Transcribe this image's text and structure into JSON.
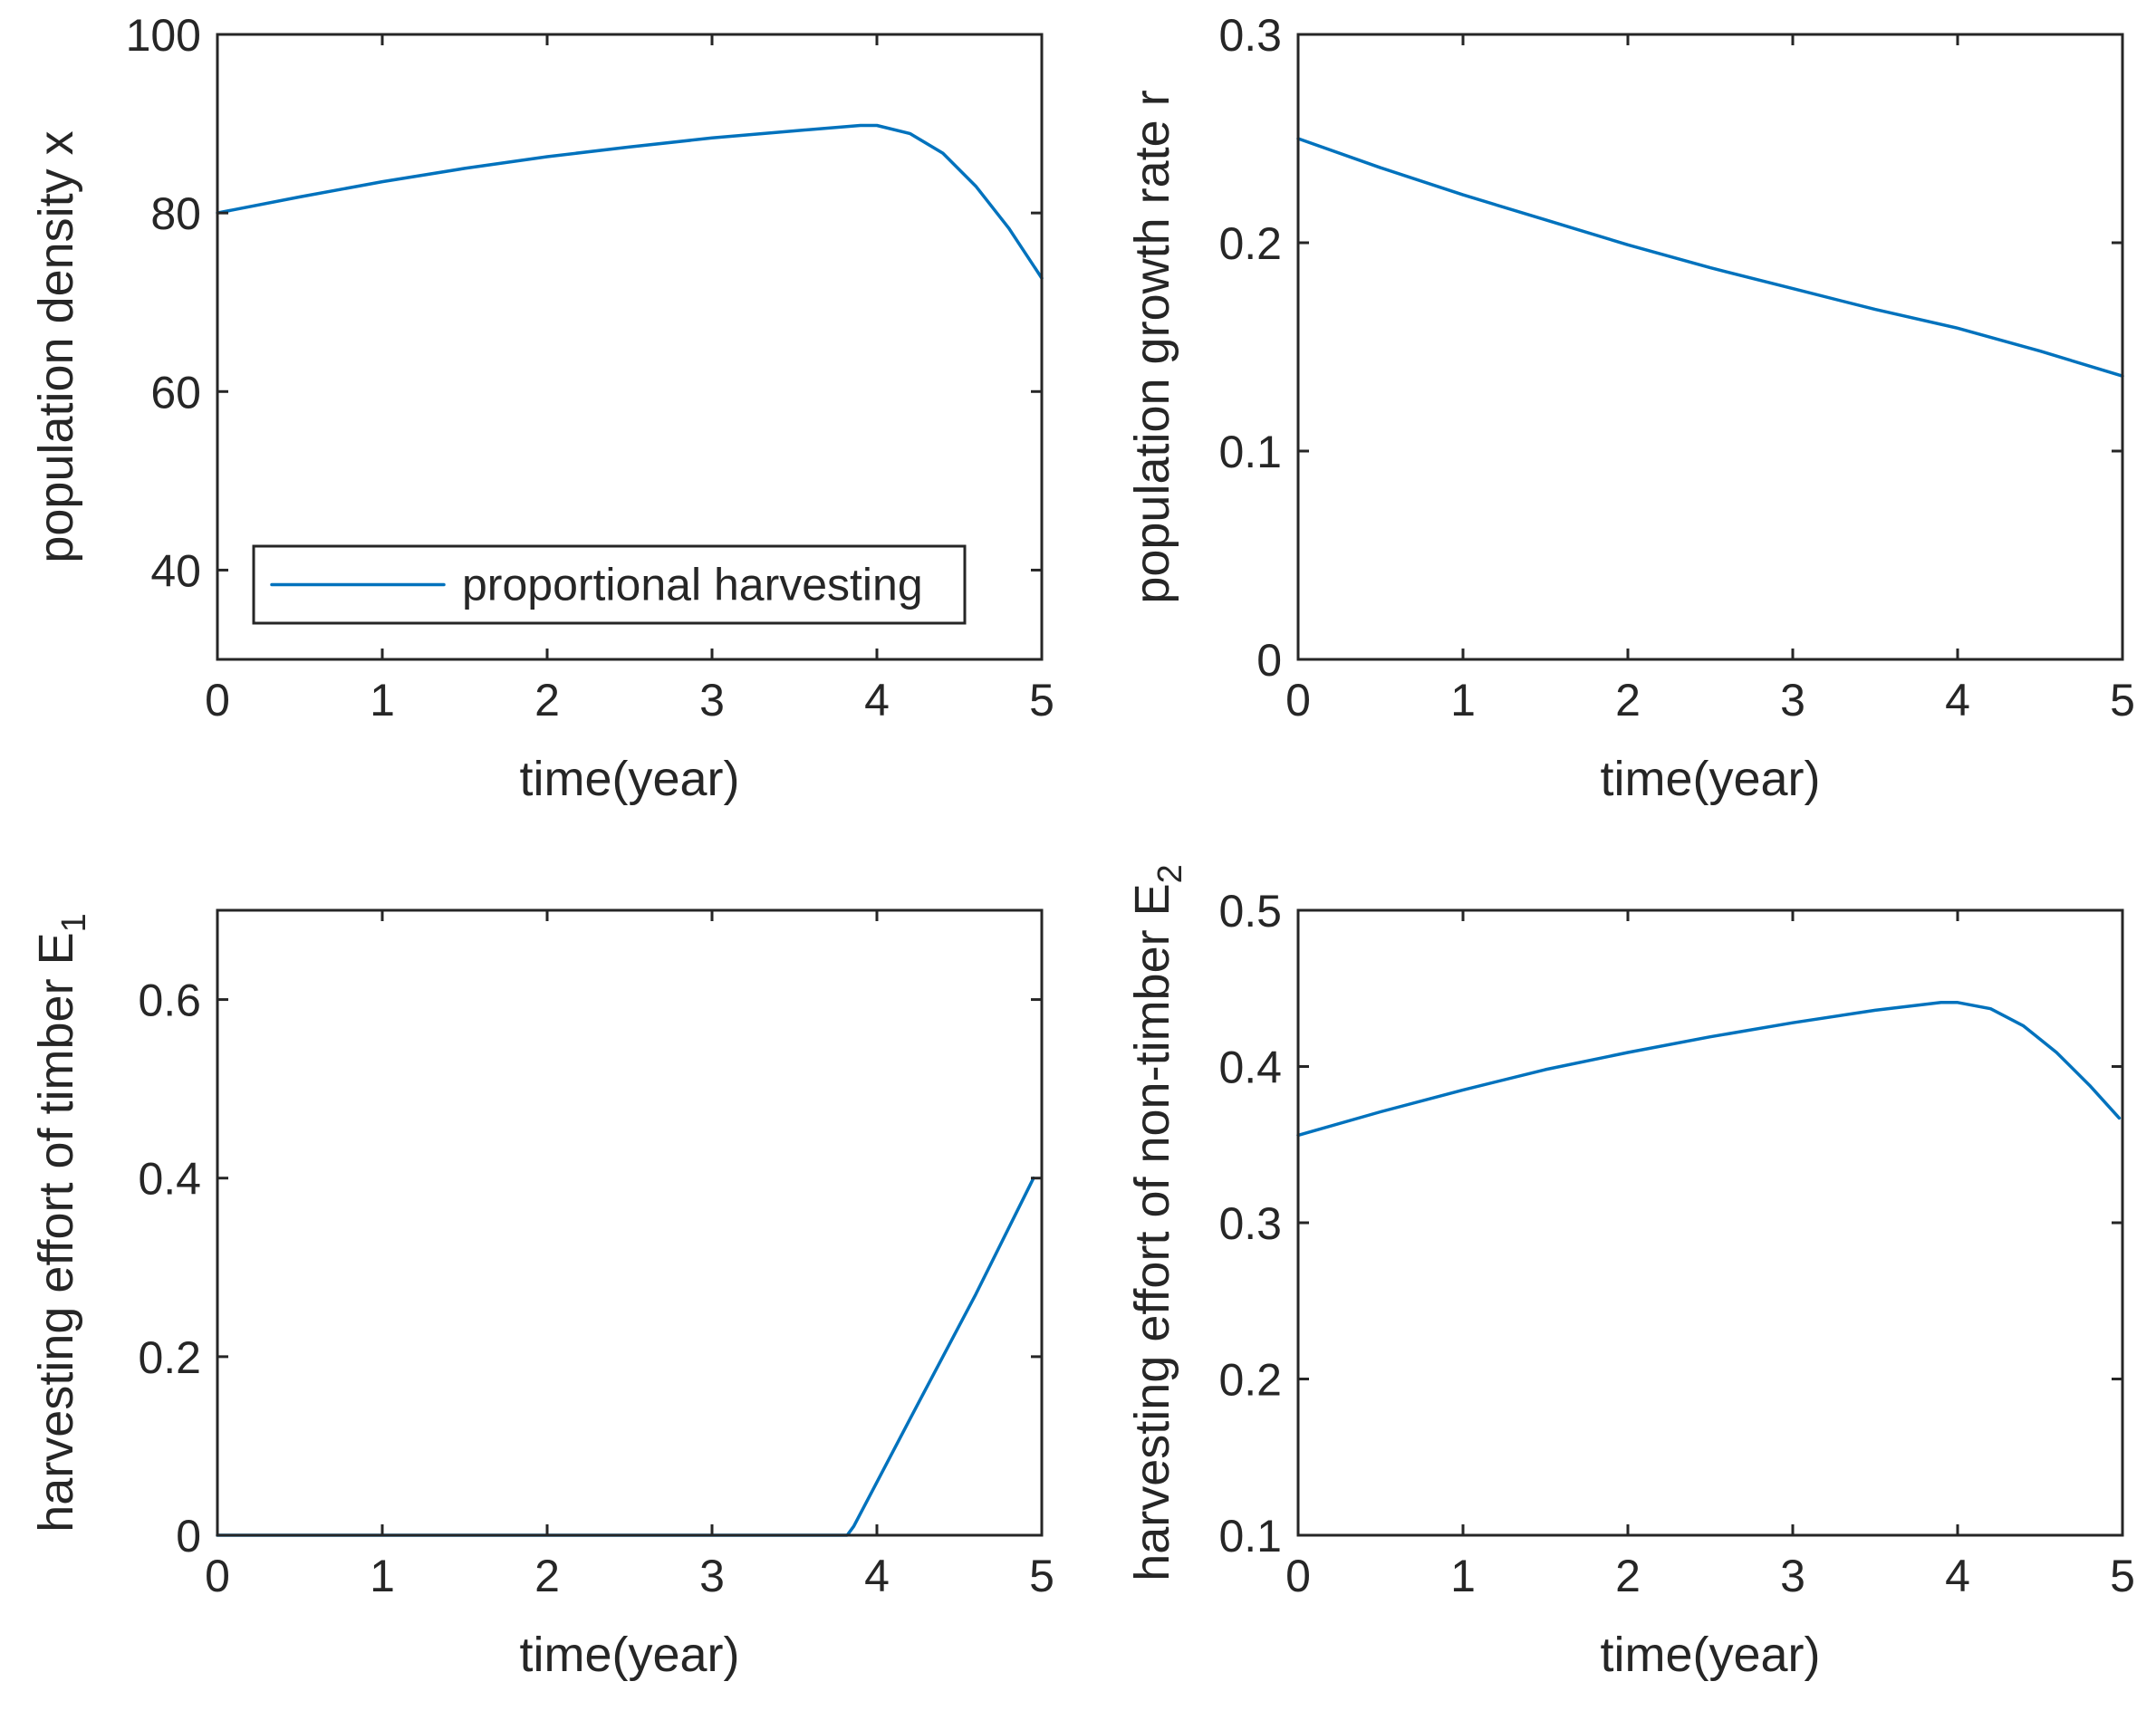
{
  "colors": {
    "series": "#0072BD",
    "axis": "#262626"
  },
  "chart_data": [
    {
      "type": "line",
      "xlabel": "time(year)",
      "ylabel": {
        "main": "population density x",
        "sub": ""
      },
      "xlim": [
        0,
        5
      ],
      "ylim": [
        30,
        100
      ],
      "xticks": [
        0,
        1,
        2,
        3,
        4,
        5
      ],
      "yticks": [
        40,
        60,
        80,
        100
      ],
      "legend": {
        "placement": "bottom-left",
        "entries": [
          "proportional harvesting"
        ]
      },
      "series": [
        {
          "name": "proportional harvesting",
          "x": [
            0,
            0.5,
            1,
            1.5,
            2,
            2.5,
            3,
            3.5,
            3.9,
            4.0,
            4.2,
            4.4,
            4.6,
            4.8,
            5.0
          ],
          "y": [
            80.0,
            81.8,
            83.5,
            85.0,
            86.3,
            87.4,
            88.4,
            89.2,
            89.8,
            89.8,
            88.9,
            86.7,
            83.0,
            78.3,
            72.7
          ]
        }
      ]
    },
    {
      "type": "line",
      "xlabel": "time(year)",
      "ylabel": {
        "main": "population growth rate r",
        "sub": ""
      },
      "xlim": [
        0,
        5
      ],
      "ylim": [
        0,
        0.3
      ],
      "xticks": [
        0,
        1,
        2,
        3,
        4,
        5
      ],
      "yticks": [
        0,
        0.1,
        0.2,
        0.3
      ],
      "series": [
        {
          "name": "",
          "x": [
            0,
            0.5,
            1,
            1.5,
            2,
            2.5,
            3,
            3.5,
            4,
            4.5,
            5
          ],
          "y": [
            0.25,
            0.236,
            0.223,
            0.211,
            0.199,
            0.188,
            0.178,
            0.168,
            0.159,
            0.148,
            0.136
          ]
        }
      ]
    },
    {
      "type": "line",
      "xlabel": "time(year)",
      "ylabel": {
        "main": "harvesting effort of timber E",
        "sub": "1"
      },
      "xlim": [
        0,
        5
      ],
      "ylim": [
        0,
        0.7
      ],
      "xticks": [
        0,
        1,
        2,
        3,
        4,
        5
      ],
      "yticks": [
        0,
        0.2,
        0.4,
        0.6
      ],
      "series": [
        {
          "name": "",
          "x": [
            0,
            1,
            2,
            3,
            3.82,
            3.86,
            4.2,
            4.6,
            4.95
          ],
          "y": [
            0,
            0,
            0,
            0,
            0,
            0.01,
            0.13,
            0.27,
            0.4
          ]
        }
      ]
    },
    {
      "type": "line",
      "xlabel": "time(year)",
      "ylabel": {
        "main": "harvesting effort of non-timber E",
        "sub": "2"
      },
      "xlim": [
        0,
        5
      ],
      "ylim": [
        0.1,
        0.5
      ],
      "xticks": [
        0,
        1,
        2,
        3,
        4,
        5
      ],
      "yticks": [
        0.1,
        0.2,
        0.3,
        0.4,
        0.5
      ],
      "series": [
        {
          "name": "",
          "x": [
            0,
            0.5,
            1,
            1.5,
            2,
            2.5,
            3,
            3.5,
            3.9,
            4.0,
            4.2,
            4.4,
            4.6,
            4.8,
            4.98
          ],
          "y": [
            0.356,
            0.371,
            0.385,
            0.398,
            0.409,
            0.419,
            0.428,
            0.436,
            0.441,
            0.441,
            0.437,
            0.426,
            0.409,
            0.388,
            0.367
          ]
        }
      ]
    }
  ]
}
